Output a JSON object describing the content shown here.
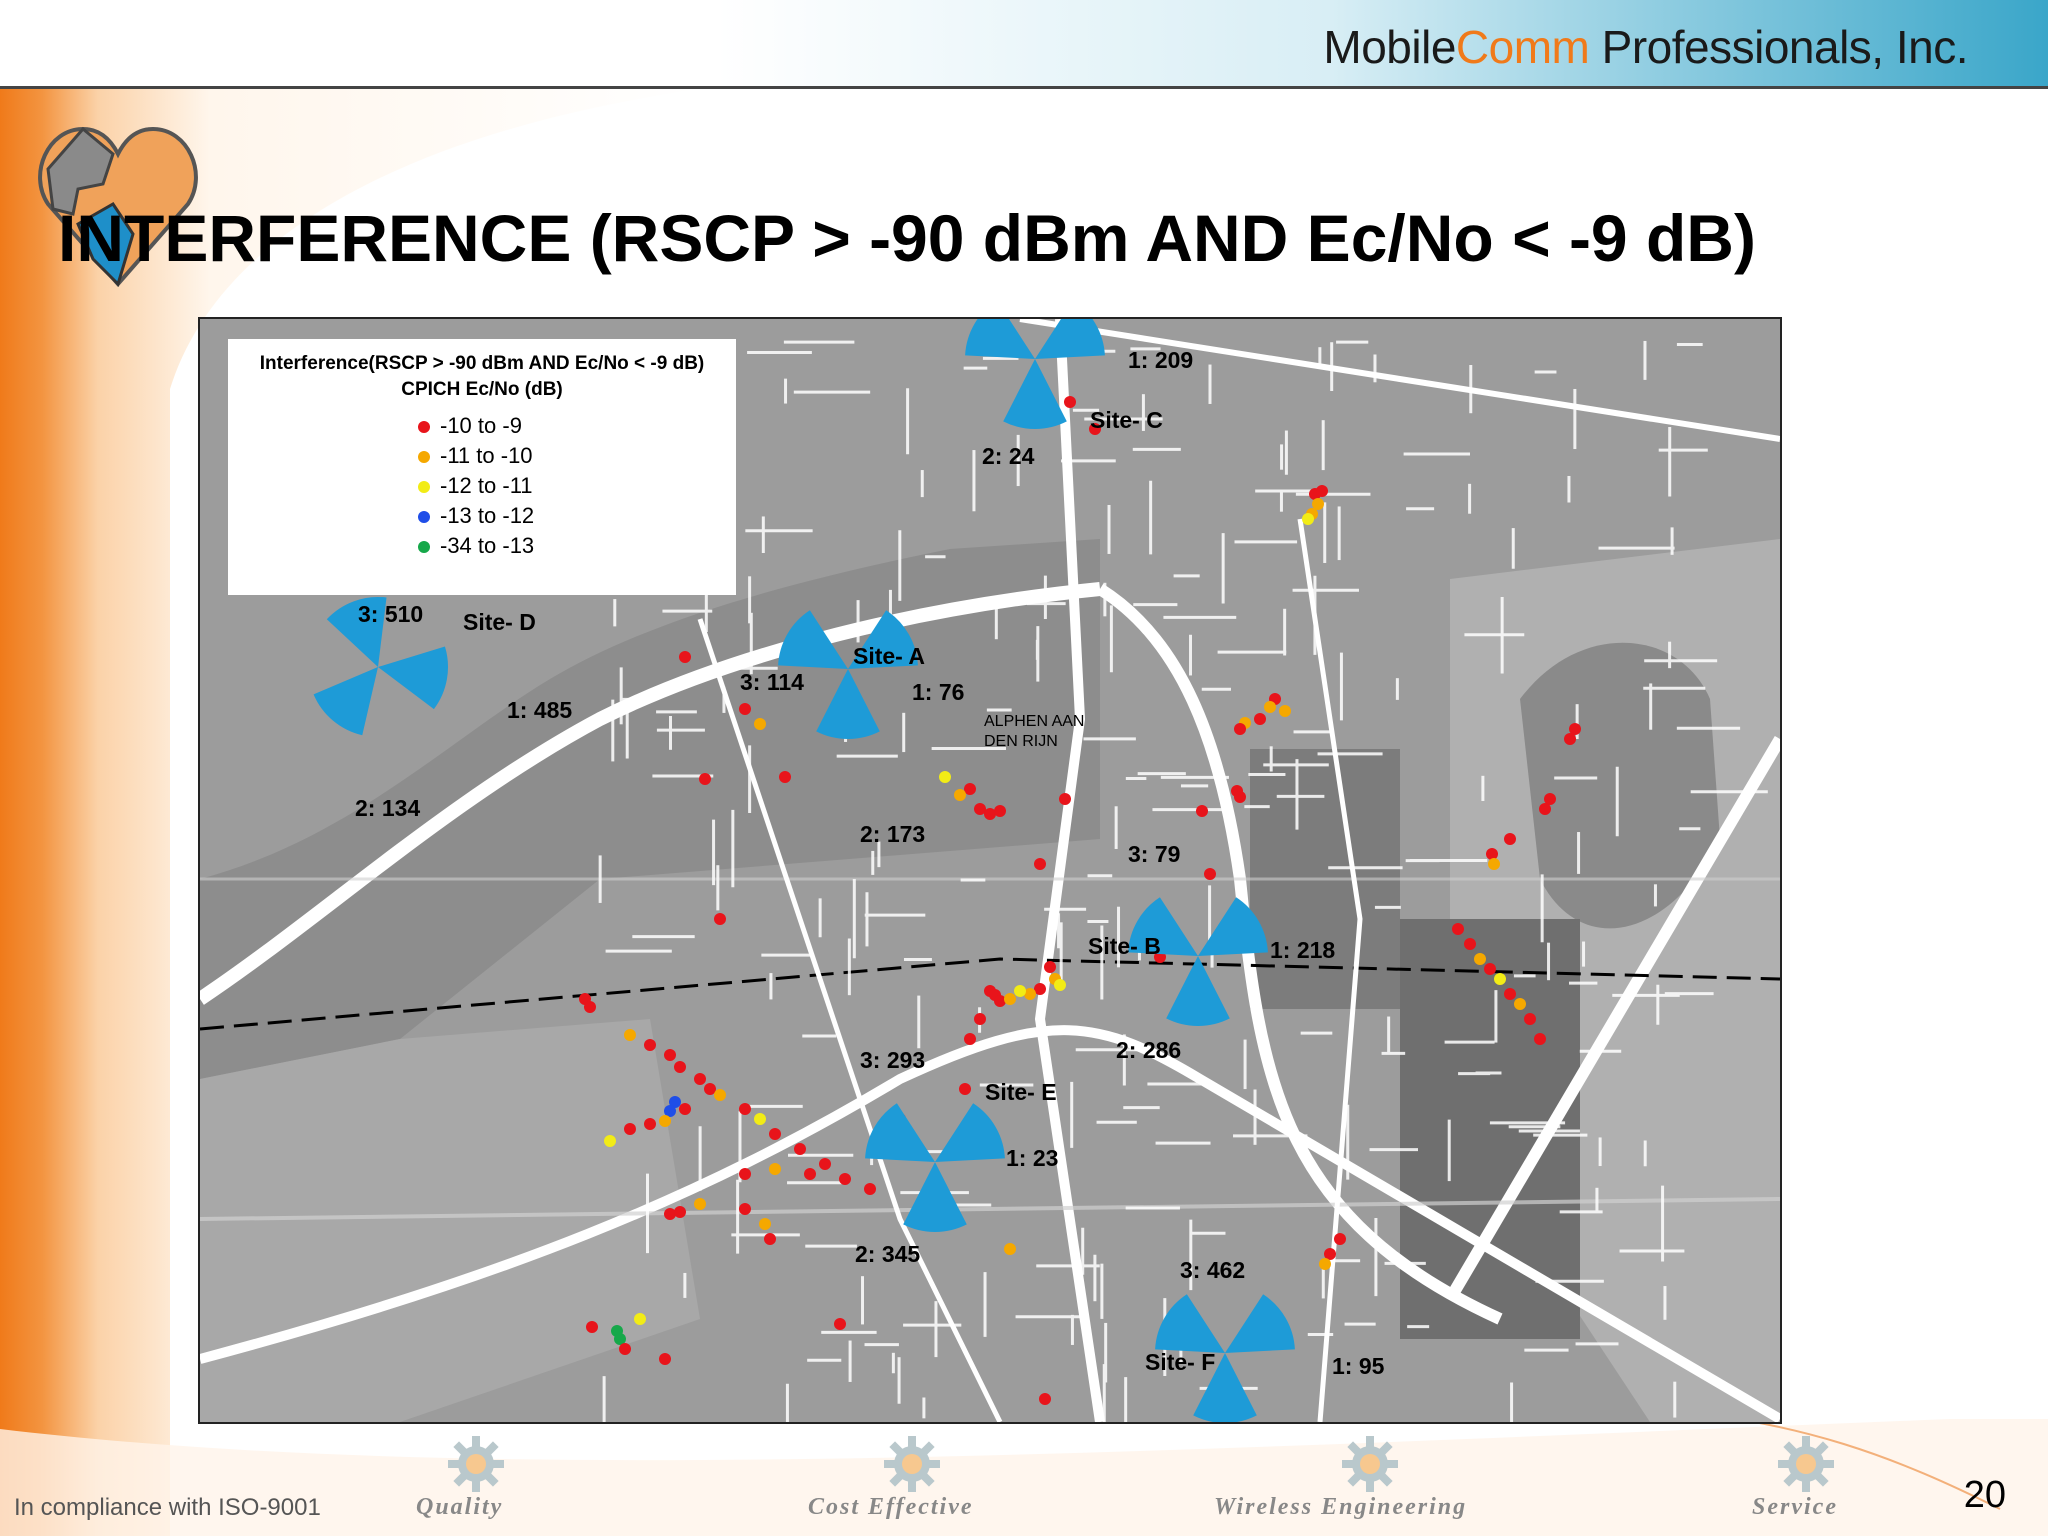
{
  "header": {
    "company_part1": "Mobile",
    "company_part2": "Comm",
    "company_part3": " Professionals, Inc."
  },
  "slide": {
    "title": "INTERFERENCE (RSCP > -90 dBm AND Ec/No < -9 dB)",
    "page_number": "20"
  },
  "legend": {
    "title_line1": "Interference(RSCP > -90 dBm  AND Ec/No < -9 dB)",
    "title_line2": "CPICH Ec/No (dB)",
    "items": [
      {
        "label": "-10 to   -9",
        "color": "#e8141b"
      },
      {
        "label": "-11 to -10",
        "color": "#f5a800"
      },
      {
        "label": "-12 to -11",
        "color": "#f2ec16"
      },
      {
        "label": "-13 to -12",
        "color": "#1f4ee8"
      },
      {
        "label": "-34 to -13",
        "color": "#16a84a"
      }
    ]
  },
  "map": {
    "town_label_1": "ALPHEN AAN",
    "town_label_2": "DEN RIJN",
    "sites": [
      {
        "name": "Site- A"
      },
      {
        "name": "Site- B"
      },
      {
        "name": "Site- C"
      },
      {
        "name": "Site- D"
      },
      {
        "name": "Site- E"
      },
      {
        "name": "Site- F"
      }
    ],
    "sector_labels": [
      "1: 209",
      "2: 24",
      "3: 510",
      "1: 485",
      "2: 134",
      "3: 114",
      "1: 76",
      "2: 173",
      "3: 79",
      "1: 218",
      "2: 286",
      "3: 293",
      "1: 23",
      "2: 345",
      "3: 462",
      "1: 95"
    ],
    "sector_color": "#1e9bd7"
  },
  "footer": {
    "compliance": "In compliance with ISO-9001",
    "items": [
      "Quality",
      "Cost Effective",
      "Wireless Engineering",
      "Service"
    ]
  },
  "colors": {
    "accent_orange": "#f07a1a",
    "header_blue": "#3aa6c9"
  }
}
